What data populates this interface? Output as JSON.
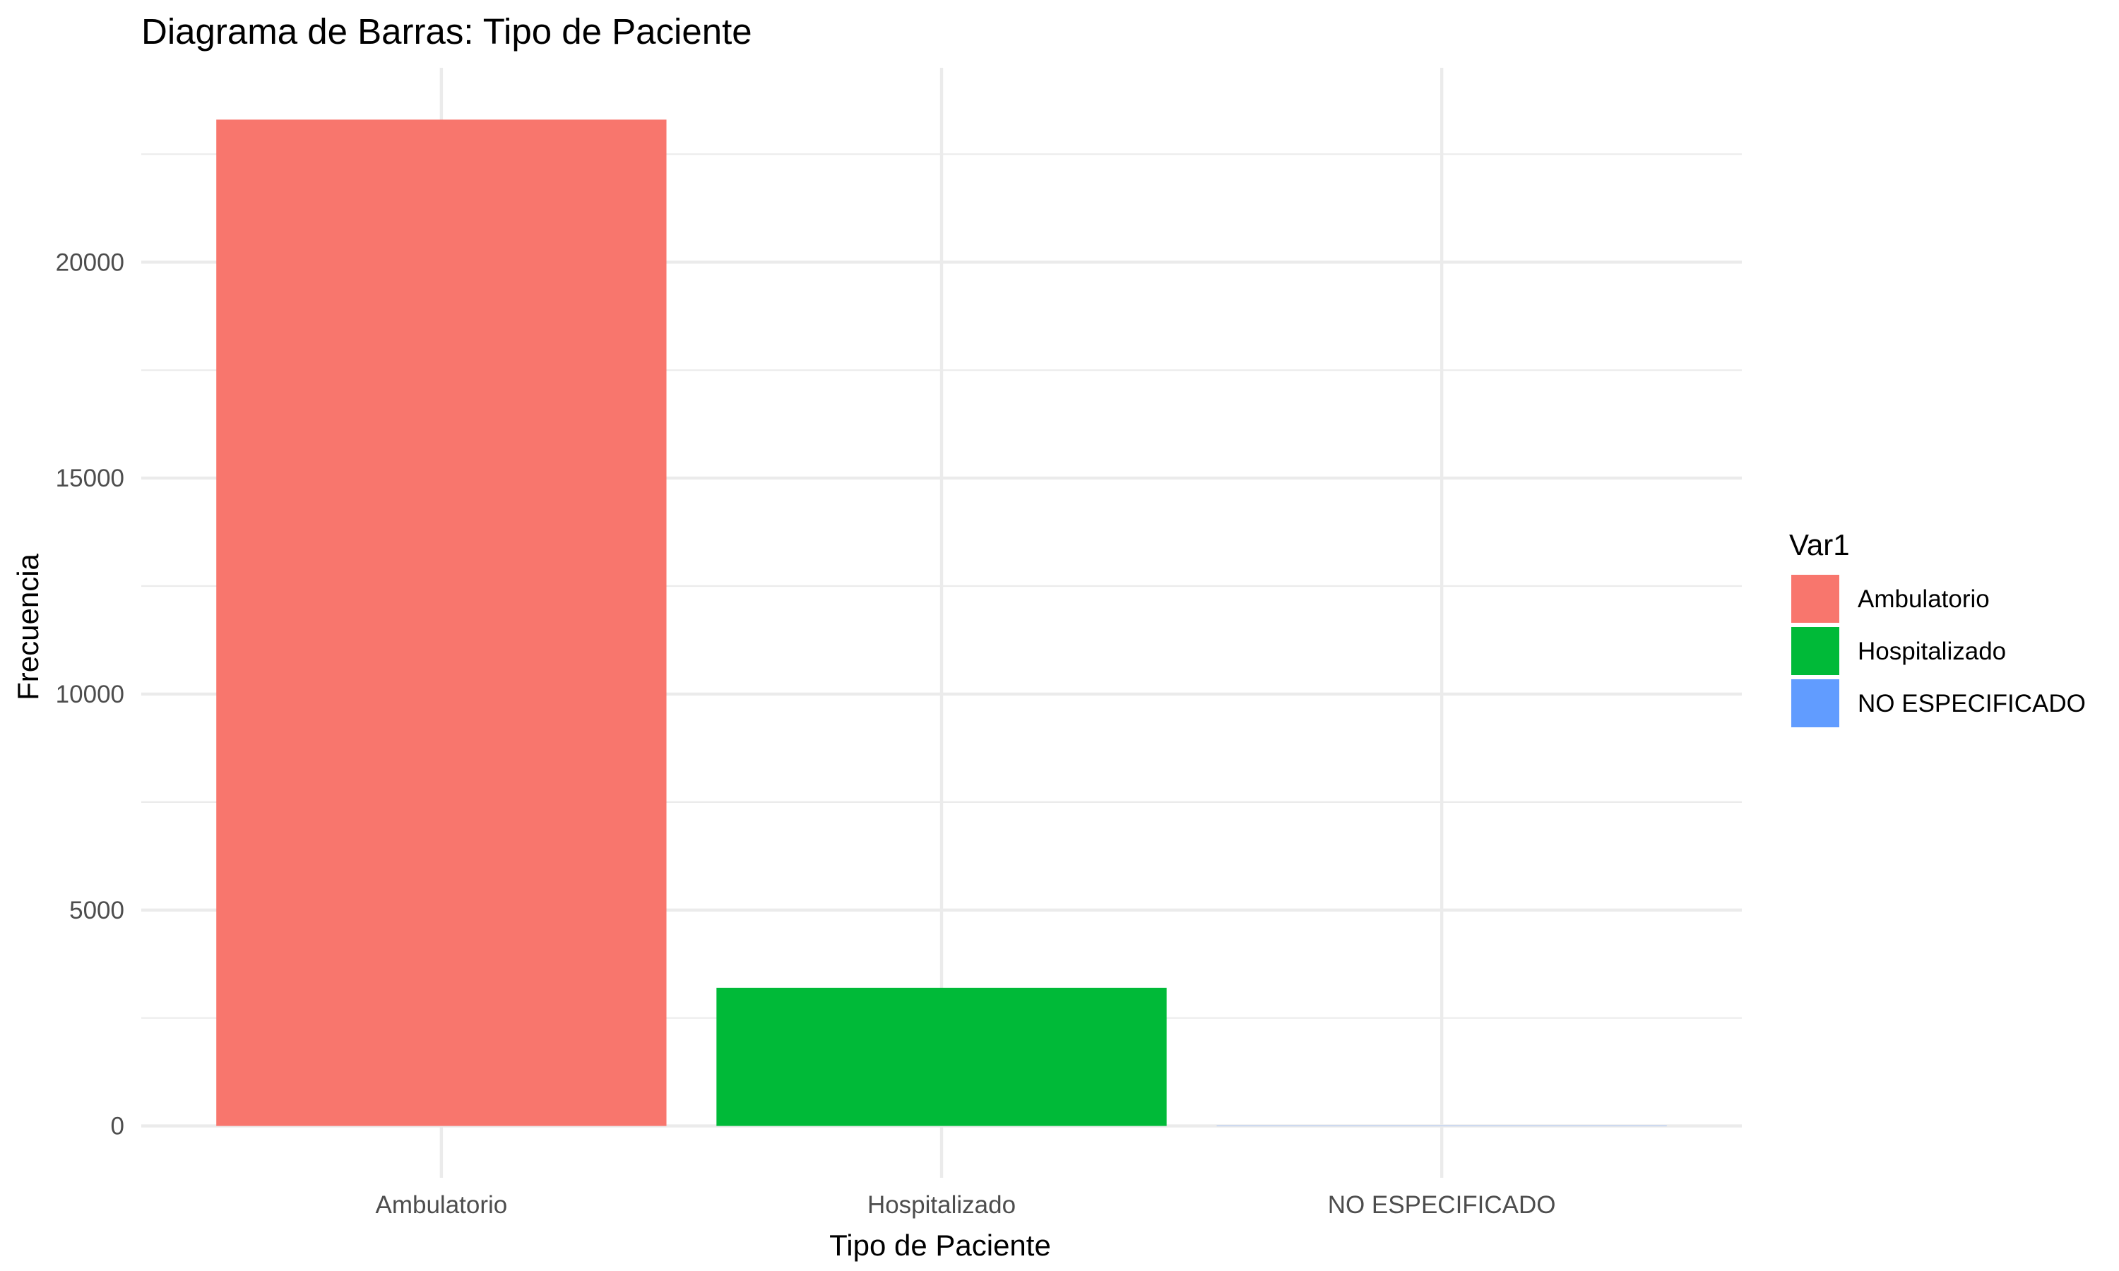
{
  "chart_data": {
    "type": "bar",
    "title": "Diagrama de Barras: Tipo de Paciente",
    "xlabel": "Tipo de Paciente",
    "ylabel": "Frecuencia",
    "categories": [
      "Ambulatorio",
      "Hospitalizado",
      "NO ESPECIFICADO"
    ],
    "values": [
      23300,
      3200,
      3
    ],
    "colors": [
      "#F8766D",
      "#00BA38",
      "#619CFF"
    ],
    "ylim": [
      -1200,
      24500
    ],
    "yticks": [
      0,
      5000,
      10000,
      15000,
      20000
    ],
    "ytick_labels": [
      "0",
      "5000",
      "10000",
      "15000",
      "20000"
    ],
    "grid": true,
    "legend": {
      "title": "Var1",
      "position": "right",
      "entries": [
        "Ambulatorio",
        "Hospitalizado",
        "NO ESPECIFICADO"
      ]
    }
  }
}
